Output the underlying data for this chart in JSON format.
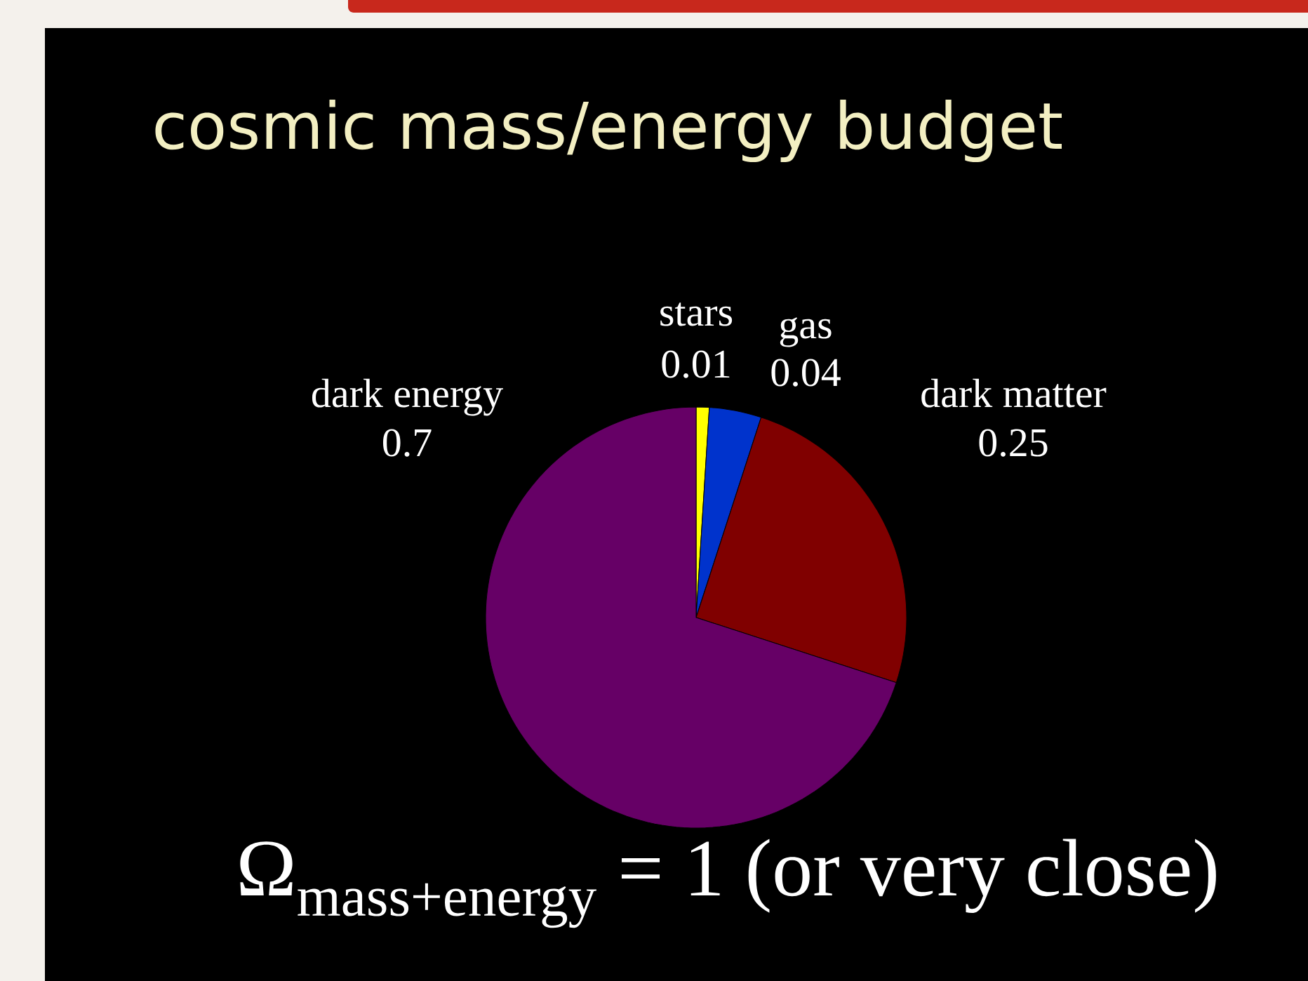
{
  "chart_data": {
    "type": "pie",
    "title": "cosmic mass/energy budget",
    "categories": [
      "stars",
      "gas",
      "dark matter",
      "dark energy"
    ],
    "values": [
      0.01,
      0.04,
      0.25,
      0.7
    ],
    "colors": [
      "#ffff00",
      "#0033cc",
      "#800000",
      "#660066"
    ],
    "data_labels": true,
    "annotations": [
      "\\text{Ω}_{\\text{mass+energy}}\\text{ = 1 (or very close)}"
    ]
  }
}
